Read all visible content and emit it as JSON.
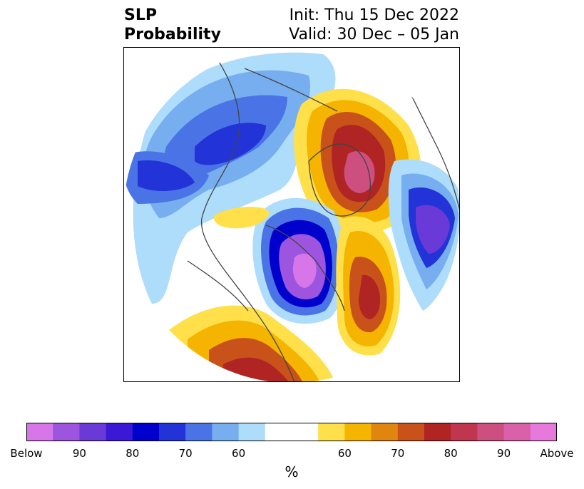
{
  "title": {
    "line1": "SLP",
    "line2": "Probability",
    "init": "Init: Thu 15 Dec 2022",
    "valid": "Valid: 30 Dec – 05 Jan"
  },
  "colorbar": {
    "unit": "%",
    "colors": [
      "#d676e8",
      "#9d55e0",
      "#6a3ad8",
      "#3a18d6",
      "#0000cc",
      "#2233d8",
      "#4a74e6",
      "#76aef0",
      "#aedcfb",
      "#ffffff",
      "#ffffff",
      "#ffe04a",
      "#f4b400",
      "#e0850e",
      "#c8521a",
      "#b02424",
      "#c0364e",
      "#cc4f80",
      "#da60aa",
      "#e778dc"
    ],
    "tick_labels": [
      "Below",
      "90",
      "80",
      "70",
      "60",
      "60",
      "70",
      "80",
      "90",
      "Above"
    ]
  },
  "map": {
    "projection": "polar-stereographic-north",
    "anomalies": [
      {
        "name": "north-america-low",
        "sign": "below",
        "peak_percent": 95
      },
      {
        "name": "greenland-high",
        "sign": "above",
        "peak_percent": 90
      },
      {
        "name": "atlantic-high",
        "sign": "above",
        "peak_percent": 80
      },
      {
        "name": "eurasia-low",
        "sign": "below",
        "peak_percent": 85
      },
      {
        "name": "north-pacific-low",
        "sign": "below",
        "peak_percent": 70
      },
      {
        "name": "mexico-high",
        "sign": "above",
        "peak_percent": 80
      }
    ]
  }
}
